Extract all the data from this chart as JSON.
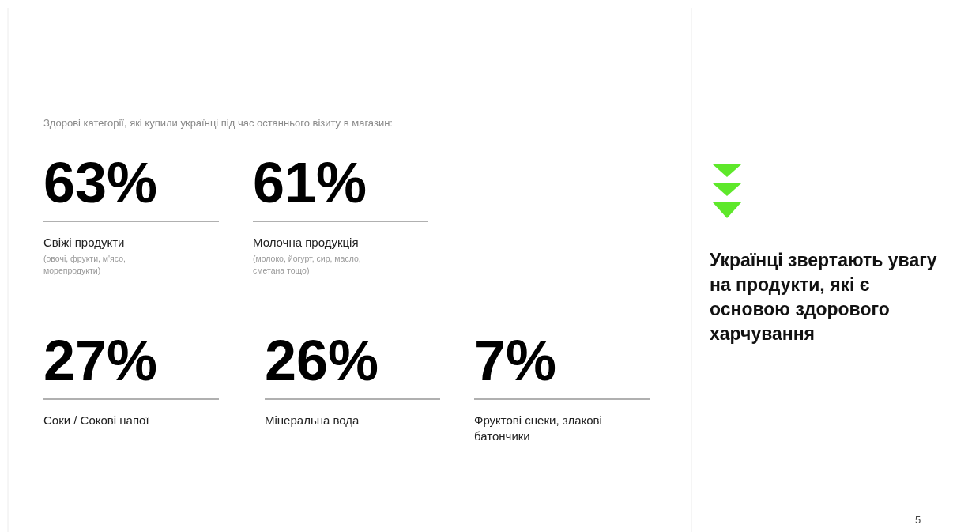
{
  "chart_data": {
    "type": "other",
    "title": "Українці звертають увагу на продукти, які є основою здорового харчування",
    "subtitle": "Здорові категорії, які купили українці під час останнього візиту в магазин:",
    "categories": [
      "Свіжі продукти",
      "Молочна продукція",
      "Соки / Сокові напої",
      "Мінеральна вода",
      "Фруктові снеки, злакові батончики"
    ],
    "values": [
      63,
      61,
      27,
      26,
      7
    ],
    "value_labels": [
      "63%",
      "61%",
      "27%",
      "26%",
      "7%"
    ],
    "annotations": [
      {
        "text": "(овочі, фрукти, м'ясо, морепродукти)",
        "x": "Свіжі продукти"
      },
      {
        "text": "(молоко, йогурт, сир, масло, сметана тощо)",
        "x": "Молочна продукція"
      },
      "5"
    ]
  }
}
